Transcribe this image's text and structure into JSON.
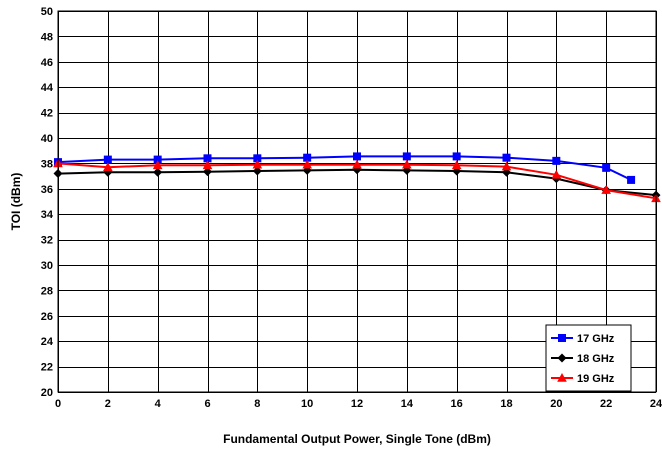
{
  "chart_data": {
    "type": "line",
    "title": "",
    "xlabel": "Fundamental Output Power, Single Tone (dBm)",
    "ylabel": "TOI (dBm)",
    "xlim": [
      0,
      24
    ],
    "ylim": [
      20,
      50
    ],
    "xticks": [
      0,
      2,
      4,
      6,
      8,
      10,
      12,
      14,
      16,
      18,
      20,
      22,
      24
    ],
    "yticks": [
      20,
      22,
      24,
      26,
      28,
      30,
      32,
      34,
      36,
      38,
      40,
      42,
      44,
      46,
      48,
      50
    ],
    "grid": true,
    "legend": "bottom-right",
    "series": [
      {
        "name": "17 GHz",
        "color": "#0000ff",
        "marker": "square",
        "x": [
          0,
          2,
          4,
          6,
          8,
          10,
          12,
          14,
          16,
          18,
          20,
          22,
          23
        ],
        "y": [
          38.1,
          38.3,
          38.3,
          38.4,
          38.4,
          38.45,
          38.55,
          38.55,
          38.55,
          38.45,
          38.2,
          37.65,
          36.7
        ]
      },
      {
        "name": "18 GHz",
        "color": "#000000",
        "marker": "diamond",
        "x": [
          0,
          2,
          4,
          6,
          8,
          10,
          12,
          14,
          16,
          18,
          20,
          22,
          24
        ],
        "y": [
          37.2,
          37.3,
          37.3,
          37.35,
          37.4,
          37.45,
          37.5,
          37.45,
          37.4,
          37.3,
          36.8,
          35.9,
          35.5
        ]
      },
      {
        "name": "19 GHz",
        "color": "#ff0000",
        "marker": "triangle",
        "x": [
          0,
          2,
          4,
          6,
          8,
          10,
          12,
          14,
          16,
          18,
          20,
          22,
          24
        ],
        "y": [
          38.0,
          37.7,
          37.85,
          37.85,
          37.9,
          37.9,
          37.9,
          37.9,
          37.85,
          37.75,
          37.1,
          35.9,
          35.25
        ]
      }
    ]
  }
}
